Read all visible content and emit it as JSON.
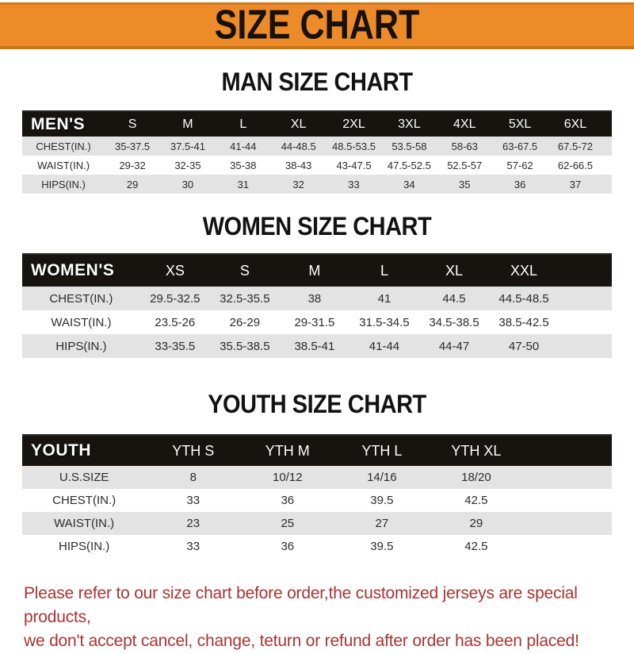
{
  "banner": {
    "title": "SIZE CHART"
  },
  "colors": {
    "banner_bg": "#ec8b28",
    "banner_border": "#c9751c",
    "header_bar_bg": "#17130e",
    "alt_row_bg": "#e3e3e3",
    "note_red": "#a83434"
  },
  "man": {
    "heading": "MAN SIZE CHART",
    "table": {
      "label": "MEN'S",
      "columns": [
        "S",
        "M",
        "L",
        "XL",
        "2XL",
        "3XL",
        "4XL",
        "5XL",
        "6XL"
      ],
      "rows": [
        {
          "label": "CHEST(IN.)",
          "values": [
            "35-37.5",
            "37.5-41",
            "41-44",
            "44-48.5",
            "48.5-53.5",
            "53.5-58",
            "58-63",
            "63-67.5",
            "67.5-72"
          ]
        },
        {
          "label": "WAIST(IN.)",
          "values": [
            "29-32",
            "32-35",
            "35-38",
            "38-43",
            "43-47.5",
            "47.5-52.5",
            "52.5-57",
            "57-62",
            "62-66.5"
          ]
        },
        {
          "label": "HIPS(IN.)",
          "values": [
            "29",
            "30",
            "31",
            "32",
            "33",
            "34",
            "35",
            "36",
            "37"
          ]
        }
      ]
    }
  },
  "women": {
    "heading": "WOMEN SIZE CHART",
    "table": {
      "label": "WOMEN'S",
      "columns": [
        "XS",
        "S",
        "M",
        "L",
        "XL",
        "XXL"
      ],
      "rows": [
        {
          "label": "CHEST(IN.)",
          "values": [
            "29.5-32.5",
            "32.5-35.5",
            "38",
            "41",
            "44.5",
            "44.5-48.5"
          ]
        },
        {
          "label": "WAIST(IN.)",
          "values": [
            "23.5-26",
            "26-29",
            "29-31.5",
            "31.5-34.5",
            "34.5-38.5",
            "38.5-42.5"
          ]
        },
        {
          "label": "HIPS(IN.)",
          "values": [
            "33-35.5",
            "35.5-38.5",
            "38.5-41",
            "41-44",
            "44-47",
            "47-50"
          ]
        }
      ]
    }
  },
  "youth": {
    "heading": "YOUTH SIZE CHART",
    "table": {
      "label": "YOUTH",
      "columns": [
        "YTH S",
        "YTH M",
        "YTH L",
        "YTH XL"
      ],
      "rows": [
        {
          "label": "U.S.SIZE",
          "values": [
            "8",
            "10/12",
            "14/16",
            "18/20"
          ]
        },
        {
          "label": "CHEST(IN.)",
          "values": [
            "33",
            "36",
            "39.5",
            "42.5"
          ]
        },
        {
          "label": "WAIST(IN.)",
          "values": [
            "23",
            "25",
            "27",
            "29"
          ]
        },
        {
          "label": "HIPS(IN.)",
          "values": [
            "33",
            "36",
            "39.5",
            "42.5"
          ]
        }
      ]
    }
  },
  "note": {
    "line1": "Please refer to our size chart before order,the customized jerseys are special products,",
    "line2": "we don't accept cancel, change, teturn or refund after order has been placed!"
  }
}
